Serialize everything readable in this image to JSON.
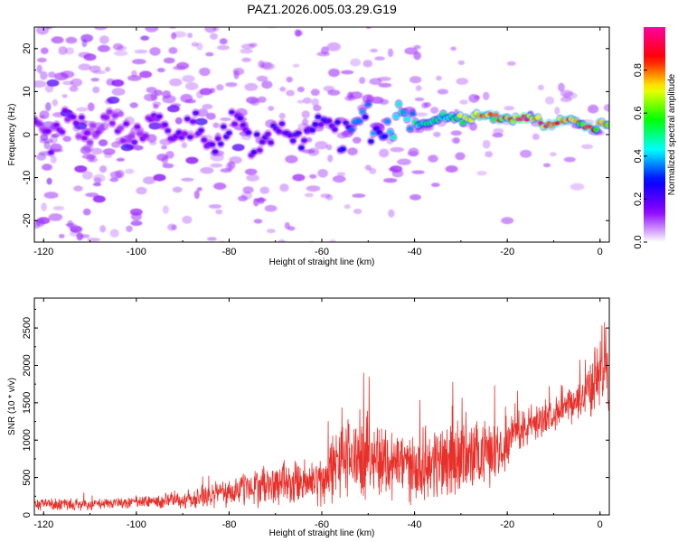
{
  "title": "PAZ1.2026.005.03.29.G19",
  "chart_data": [
    {
      "type": "heatmap",
      "title": "PAZ1.2026.005.03.29.G19",
      "xlabel": "Height of straight line (km)",
      "ylabel": "Frequency (Hz)",
      "xlim": [
        -122,
        2
      ],
      "ylim": [
        -25,
        25
      ],
      "xticks": [
        -120,
        -100,
        -80,
        -60,
        -40,
        -20,
        0
      ],
      "yticks": [
        -20,
        -10,
        0,
        10,
        20
      ],
      "colorbar": {
        "label": "Normalized spectral amplitude",
        "range": [
          0,
          1
        ],
        "ticks": [
          0.0,
          0.2,
          0.4,
          0.6,
          0.8
        ],
        "colors": [
          "#ffffff",
          "#8a00ff",
          "#0000ff",
          "#00ffff",
          "#00ff00",
          "#ffff00",
          "#ff0000",
          "#ff00a0"
        ]
      },
      "ridge": {
        "x": [
          -122,
          -100,
          -80,
          -70,
          -60,
          -50,
          -40,
          -30,
          -20,
          -10,
          0,
          2
        ],
        "freq": [
          2.0,
          2.0,
          0.5,
          -1.5,
          1.5,
          2.5,
          3.0,
          4.0,
          4.0,
          3.0,
          2.0,
          2.0
        ],
        "amplitude": [
          0.15,
          0.15,
          0.2,
          0.22,
          0.25,
          0.35,
          0.45,
          0.6,
          0.85,
          0.95,
          0.75,
          0.7
        ]
      },
      "noise_blobs": [
        {
          "x": -118,
          "f": 12,
          "a": 0.2
        },
        {
          "x": -115,
          "f": 5,
          "a": 0.25
        },
        {
          "x": -112,
          "f": -8,
          "a": 0.15
        },
        {
          "x": -110,
          "f": 18,
          "a": 0.12
        },
        {
          "x": -108,
          "f": -15,
          "a": 0.15
        },
        {
          "x": -105,
          "f": 8,
          "a": 0.2
        },
        {
          "x": -102,
          "f": -3,
          "a": 0.22
        },
        {
          "x": -98,
          "f": 14,
          "a": 0.12
        },
        {
          "x": -95,
          "f": -10,
          "a": 0.15
        },
        {
          "x": -92,
          "f": 6,
          "a": 0.18
        },
        {
          "x": -88,
          "f": -6,
          "a": 0.15
        },
        {
          "x": -85,
          "f": 10,
          "a": 0.12
        },
        {
          "x": -120,
          "f": -20,
          "a": 0.12
        },
        {
          "x": -117,
          "f": 22,
          "a": 0.1
        },
        {
          "x": -113,
          "f": -22,
          "a": 0.12
        },
        {
          "x": -107,
          "f": 20,
          "a": 0.1
        },
        {
          "x": -100,
          "f": -18,
          "a": 0.12
        },
        {
          "x": -90,
          "f": 16,
          "a": 0.1
        },
        {
          "x": -82,
          "f": -12,
          "a": 0.1
        },
        {
          "x": -75,
          "f": 8,
          "a": 0.1
        },
        {
          "x": -65,
          "f": -10,
          "a": 0.12
        },
        {
          "x": -48,
          "f": 8,
          "a": 0.1
        },
        {
          "x": -44,
          "f": -8,
          "a": 0.12
        },
        {
          "x": -32,
          "f": -8,
          "a": 0.1
        },
        {
          "x": -20,
          "f": -20,
          "a": 0.08
        },
        {
          "x": -112,
          "f": 2,
          "a": 0.22
        },
        {
          "x": -104,
          "f": 12,
          "a": 0.15
        },
        {
          "x": -96,
          "f": 2,
          "a": 0.2
        },
        {
          "x": -86,
          "f": 3,
          "a": 0.22
        },
        {
          "x": -78,
          "f": -3,
          "a": 0.2
        }
      ]
    },
    {
      "type": "line",
      "xlabel": "Height of straight line (km)",
      "ylabel": "SNR (10 * v/v)",
      "xlim": [
        -122,
        2
      ],
      "ylim": [
        0,
        2900
      ],
      "xticks": [
        -120,
        -100,
        -80,
        -60,
        -40,
        -20,
        0
      ],
      "yticks": [
        0,
        500,
        1000,
        1500,
        2000,
        2500
      ],
      "series": [
        {
          "name": "SNR",
          "color": "#e8302a",
          "envelope_x": [
            -122,
            -110,
            -100,
            -90,
            -80,
            -75,
            -70,
            -65,
            -60,
            -58,
            -55,
            -50,
            -45,
            -40,
            -35,
            -33,
            -30,
            -25,
            -20,
            -15,
            -10,
            -5,
            0,
            1,
            2
          ],
          "envelope_mean": [
            150,
            140,
            170,
            200,
            300,
            380,
            400,
            420,
            450,
            600,
            750,
            800,
            700,
            650,
            700,
            800,
            750,
            800,
            1000,
            1200,
            1350,
            1500,
            1900,
            2100,
            1500
          ],
          "envelope_spread": [
            80,
            80,
            90,
            120,
            200,
            250,
            280,
            300,
            350,
            450,
            550,
            550,
            500,
            450,
            500,
            700,
            500,
            450,
            350,
            250,
            200,
            250,
            500,
            700,
            400
          ]
        }
      ]
    }
  ]
}
